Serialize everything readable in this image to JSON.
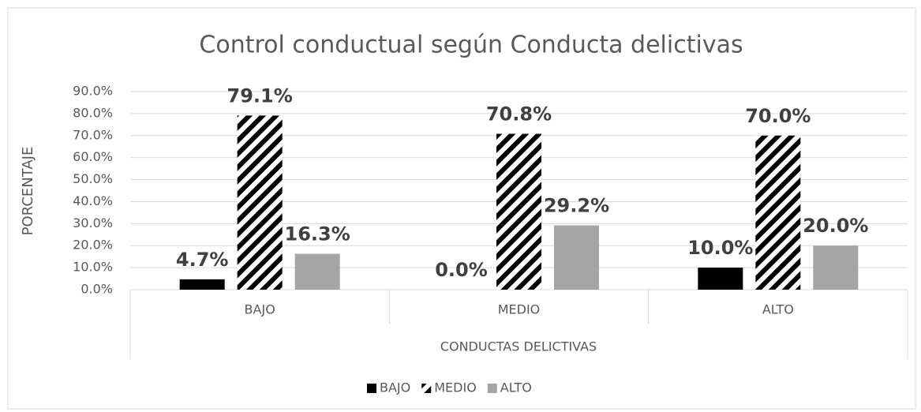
{
  "chart_data": {
    "type": "bar",
    "title": "Control conductual según Conducta delictivas",
    "y_label": "PORCENTAJE",
    "x_label": "CONDUCTAS DELICTIVAS",
    "categories": [
      "BAJO",
      "MEDIO",
      "ALTO"
    ],
    "series": [
      {
        "name": "BAJO",
        "color": "#000000",
        "values": [
          4.7,
          0.0,
          10.0
        ],
        "value_labels": [
          "4.7%",
          "0.0%",
          "10.0%"
        ]
      },
      {
        "name": "MEDIO",
        "color": "#000000",
        "pattern": "diagonal-stripes",
        "values": [
          79.1,
          70.8,
          70.0
        ],
        "value_labels": [
          "79.1%",
          "70.8%",
          "70.0%"
        ]
      },
      {
        "name": "ALTO",
        "color": "#a5a5a5",
        "values": [
          16.3,
          29.2,
          20.0
        ],
        "value_labels": [
          "16.3%",
          "29.2%",
          "20.0%"
        ]
      }
    ],
    "ylim": [
      0,
      90
    ],
    "yticks": [
      {
        "value": 0,
        "label": "0.0%"
      },
      {
        "value": 10,
        "label": "10.0%"
      },
      {
        "value": 20,
        "label": "20.0%"
      },
      {
        "value": 30,
        "label": "30.0%"
      },
      {
        "value": 40,
        "label": "40.0%"
      },
      {
        "value": 50,
        "label": "50.0%"
      },
      {
        "value": 60,
        "label": "60.0%"
      },
      {
        "value": 70,
        "label": "70.0%"
      },
      {
        "value": 80,
        "label": "80.0%"
      },
      {
        "value": 90,
        "label": "90.0%"
      }
    ],
    "grid": true,
    "legend": "bottom"
  }
}
